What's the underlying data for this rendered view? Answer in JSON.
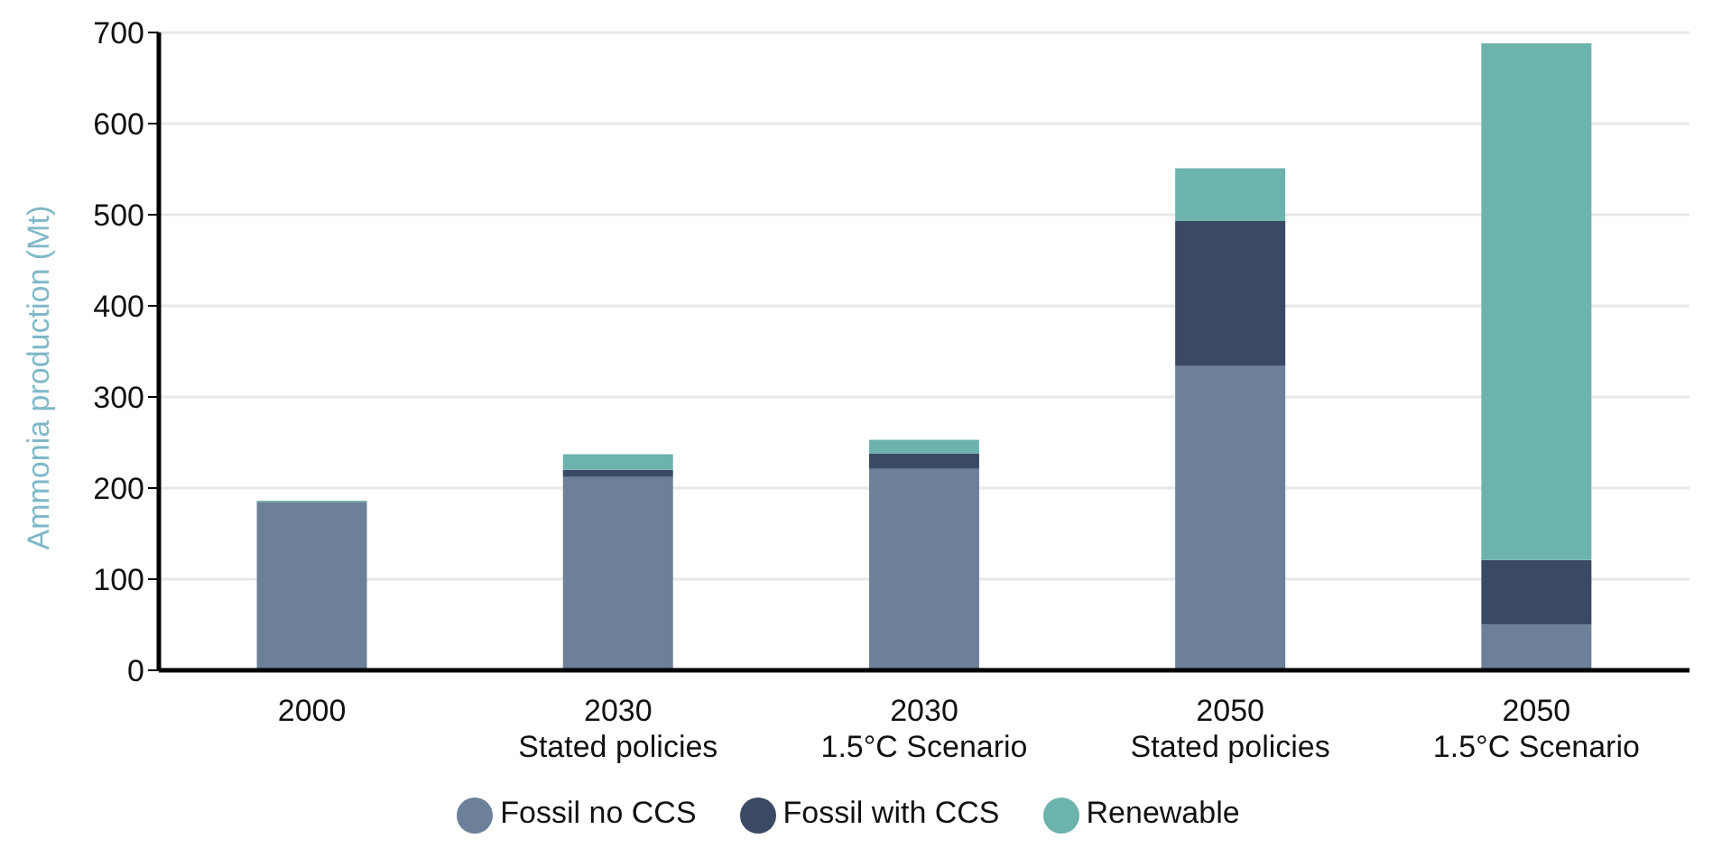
{
  "chart_data": {
    "type": "bar",
    "stacked": true,
    "ylabel": "Ammonia production (Mt)",
    "categories": [
      "2000",
      "2030\nStated policies",
      "2030\n1.5°C Scenario",
      "2050\nStated policies",
      "2050\n1.5°C Scenario"
    ],
    "series": [
      {
        "name": "Fossil no CCS",
        "color": "#6c8199",
        "values": [
          185,
          212,
          221,
          334,
          50
        ]
      },
      {
        "name": "Fossil with CCS",
        "color": "#3b4a64",
        "values": [
          0,
          8,
          17,
          159,
          71
        ]
      },
      {
        "name": "Renewable",
        "color": "#6db3ad",
        "values": [
          1,
          17,
          15,
          58,
          567
        ]
      }
    ],
    "ylim": [
      0,
      700
    ],
    "yticks": [
      0,
      100,
      200,
      300,
      400,
      500,
      600,
      700
    ],
    "grid": "y",
    "legend": "bottom"
  }
}
